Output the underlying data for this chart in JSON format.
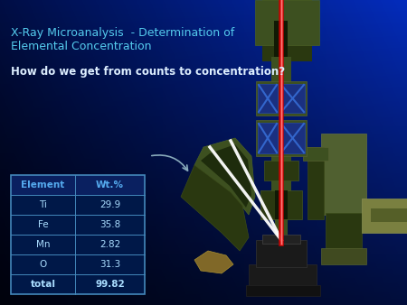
{
  "title_line1": "X-Ray Microanalysis  - Determination of",
  "title_line2": "Elemental Concentration",
  "subtitle": "How do we get from counts to concentration?",
  "table_headers": [
    "Element",
    "Wt.%"
  ],
  "table_rows": [
    [
      "Ti",
      "29.9"
    ],
    [
      "Fe",
      "35.8"
    ],
    [
      "Mn",
      "2.82"
    ],
    [
      "O",
      "31.3"
    ],
    [
      "total",
      "99.82"
    ]
  ],
  "title_color": "#55ccee",
  "subtitle_color": "#ddeeff",
  "table_border_color": "#4488bb",
  "table_header_text_color": "#55aaee",
  "table_data_text_color": "#aaddff",
  "arrow_color": "#88aabb",
  "mic_green": "#3d5020",
  "mic_dark_green": "#2a3810",
  "mic_darkest": "#1a2508",
  "mic_brown": "#806828",
  "beam_red": "#ff2000",
  "lens_blue": "#1a3080"
}
